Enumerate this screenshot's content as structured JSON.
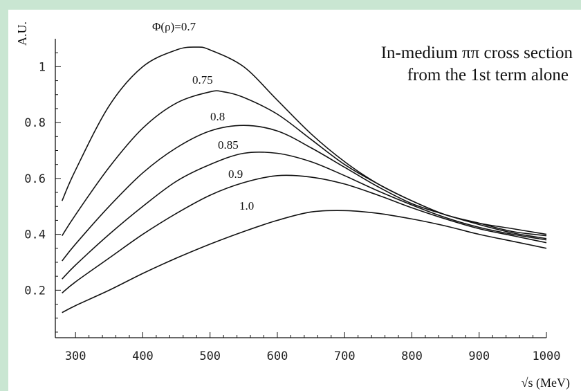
{
  "colors": {
    "background": "#c9e6d2",
    "plot_bg": "#ffffff",
    "ink": "#111111"
  },
  "chart_data": {
    "type": "line",
    "title": "",
    "annotation": [
      "In-medium ππ cross section",
      "from the 1st term alone"
    ],
    "xlabel": "√s (MeV)",
    "ylabel": "A.U.",
    "xlim": [
      270,
      1000
    ],
    "ylim": [
      0.03,
      1.1
    ],
    "x_ticks": [
      300,
      400,
      500,
      600,
      700,
      800,
      900,
      1000
    ],
    "y_ticks": [
      0.2,
      0.4,
      0.6,
      0.8,
      1
    ],
    "y_tick_labels": [
      "0.2",
      "0.4",
      "0.6",
      "0.8",
      "1"
    ],
    "grid": false,
    "series": [
      {
        "name": "Φ(ρ)=0.7",
        "x": [
          280,
          300,
          350,
          400,
          450,
          480,
          500,
          550,
          600,
          650,
          700,
          750,
          800,
          850,
          900,
          950,
          1000
        ],
        "values": [
          0.52,
          0.63,
          0.86,
          1.0,
          1.06,
          1.07,
          1.06,
          1.0,
          0.88,
          0.76,
          0.66,
          0.58,
          0.52,
          0.47,
          0.44,
          0.42,
          0.4
        ]
      },
      {
        "name": "0.75",
        "x": [
          280,
          300,
          350,
          400,
          450,
          500,
          520,
          550,
          600,
          650,
          700,
          750,
          800,
          850,
          900,
          950,
          1000
        ],
        "values": [
          0.395,
          0.47,
          0.64,
          0.78,
          0.87,
          0.91,
          0.91,
          0.89,
          0.83,
          0.74,
          0.65,
          0.58,
          0.52,
          0.47,
          0.44,
          0.41,
          0.395
        ]
      },
      {
        "name": "0.8",
        "x": [
          280,
          300,
          350,
          400,
          450,
          500,
          550,
          600,
          650,
          700,
          750,
          800,
          850,
          900,
          950,
          1000
        ],
        "values": [
          0.305,
          0.365,
          0.5,
          0.62,
          0.71,
          0.77,
          0.79,
          0.77,
          0.71,
          0.64,
          0.57,
          0.51,
          0.47,
          0.435,
          0.405,
          0.385
        ]
      },
      {
        "name": "0.85",
        "x": [
          280,
          300,
          350,
          400,
          450,
          500,
          550,
          600,
          650,
          700,
          750,
          800,
          850,
          900,
          950,
          1000
        ],
        "values": [
          0.24,
          0.29,
          0.4,
          0.5,
          0.59,
          0.65,
          0.69,
          0.69,
          0.66,
          0.61,
          0.555,
          0.505,
          0.46,
          0.425,
          0.4,
          0.38
        ]
      },
      {
        "name": "0.9",
        "x": [
          280,
          300,
          350,
          400,
          450,
          500,
          550,
          600,
          650,
          700,
          750,
          800,
          850,
          900,
          950,
          1000
        ],
        "values": [
          0.19,
          0.23,
          0.315,
          0.4,
          0.475,
          0.54,
          0.585,
          0.61,
          0.605,
          0.58,
          0.54,
          0.495,
          0.455,
          0.42,
          0.395,
          0.37
        ]
      },
      {
        "name": "1.0",
        "x": [
          280,
          300,
          350,
          400,
          450,
          500,
          550,
          600,
          650,
          700,
          750,
          800,
          850,
          900,
          950,
          1000
        ],
        "values": [
          0.12,
          0.145,
          0.2,
          0.26,
          0.315,
          0.365,
          0.41,
          0.45,
          0.48,
          0.485,
          0.475,
          0.455,
          0.43,
          0.4,
          0.375,
          0.35
        ]
      }
    ]
  }
}
